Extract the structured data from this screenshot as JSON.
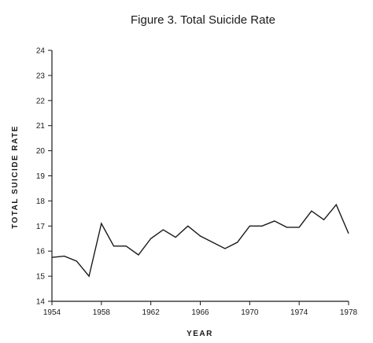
{
  "chart_data": {
    "type": "line",
    "title": "Figure 3.  Total Suicide Rate",
    "xlabel": "YEAR",
    "ylabel": "TOTAL  SUICIDE RATE",
    "xlim": [
      1954,
      1978
    ],
    "ylim": [
      14,
      24
    ],
    "x_ticks": [
      1954,
      1958,
      1962,
      1966,
      1970,
      1974,
      1978
    ],
    "y_ticks": [
      14,
      15,
      16,
      17,
      18,
      19,
      20,
      21,
      22,
      23,
      24
    ],
    "grid": false,
    "legend": "none",
    "series": [
      {
        "x": [
          1954,
          1955,
          1956,
          1957,
          1958,
          1959,
          1960,
          1961,
          1962,
          1963,
          1964,
          1965,
          1966,
          1967,
          1968,
          1969,
          1970,
          1971,
          1972,
          1973,
          1974,
          1975,
          1976,
          1977,
          1978
        ],
        "values": [
          15.75,
          15.8,
          15.6,
          15.0,
          17.1,
          16.2,
          16.2,
          15.85,
          16.5,
          16.85,
          16.55,
          17.0,
          16.6,
          16.35,
          16.1,
          16.35,
          17.0,
          17.0,
          17.2,
          16.95,
          16.95,
          17.6,
          17.25,
          17.85,
          16.7
        ]
      }
    ]
  }
}
